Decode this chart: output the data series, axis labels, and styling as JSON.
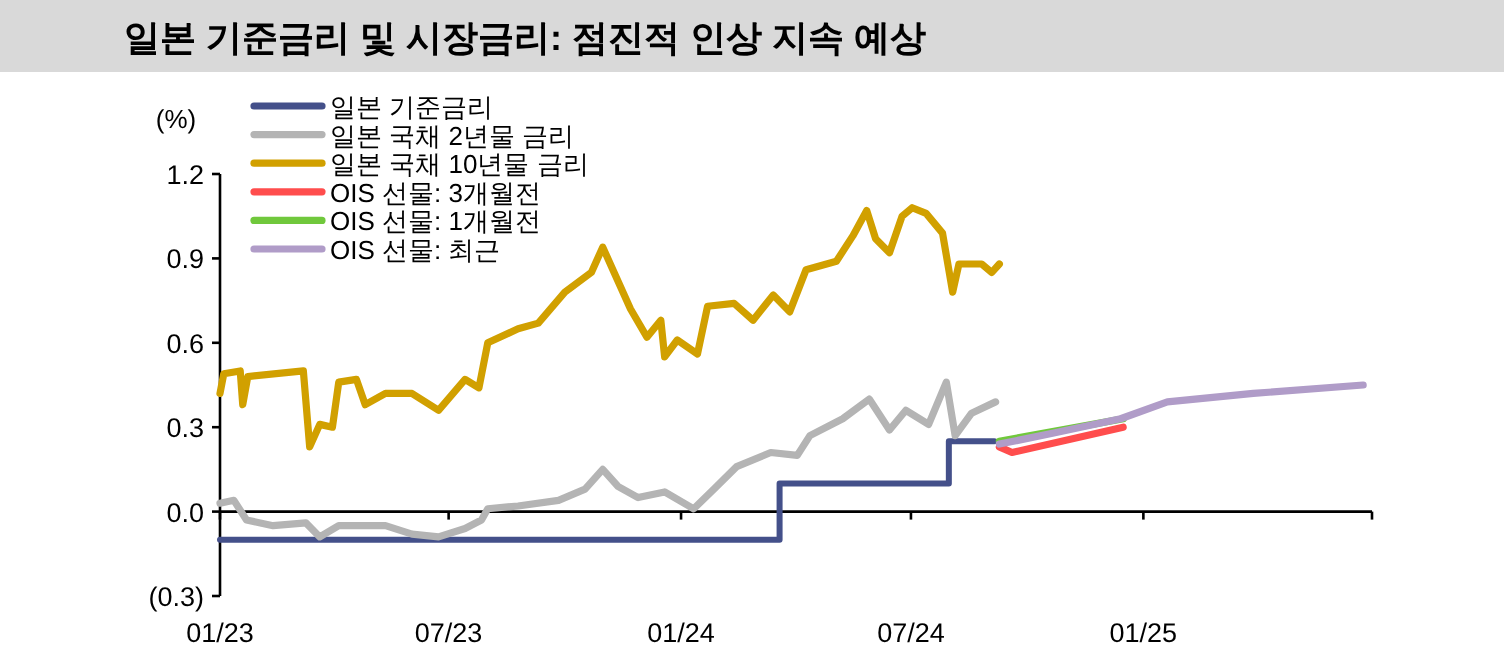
{
  "chart_data": {
    "type": "line",
    "title": "일본 기준금리 및 시장금리: 점진적 인상 지속 예상",
    "ylabel": "(%)",
    "legend": "top left",
    "xlim": [
      "2023-01-01",
      "2025-07-01"
    ],
    "ylim": [
      -0.3,
      1.2
    ],
    "xticks": [
      {
        "value": "2023-01-01",
        "label": "01/23"
      },
      {
        "value": "2023-07-01",
        "label": "07/23"
      },
      {
        "value": "2024-01-01",
        "label": "01/24"
      },
      {
        "value": "2024-07-01",
        "label": "07/24"
      },
      {
        "value": "2025-01-01",
        "label": "01/25"
      },
      {
        "value": "2025-07-01",
        "label": null
      }
    ],
    "yticks": [
      {
        "value": 1.2,
        "label": "1.2"
      },
      {
        "value": 0.9,
        "label": "0.9"
      },
      {
        "value": 0.6,
        "label": "0.6"
      },
      {
        "value": 0.3,
        "label": "0.3"
      },
      {
        "value": 0,
        "label": "0.0"
      },
      {
        "value": -0.3,
        "label": "(0.3)"
      }
    ],
    "series": [
      {
        "name": "일본 기준금리",
        "type": "step",
        "color": "#44508a",
        "x": [
          "2023-01-01",
          "2024-03-19",
          "2024-07-31",
          "2024-09-05"
        ],
        "values": [
          -0.1,
          0.1,
          0.25,
          0.25
        ]
      },
      {
        "name": "일본 국채 2년물 금리",
        "color": "#b4b4b4",
        "x": [
          "2023-01-01",
          "2023-01-12",
          "2023-01-22",
          "2023-02-12",
          "2023-03-10",
          "2023-03-21",
          "2023-04-05",
          "2023-05-12",
          "2023-06-02",
          "2023-06-23",
          "2023-07-14",
          "2023-07-27",
          "2023-08-01",
          "2023-08-25",
          "2023-09-26",
          "2023-10-17",
          "2023-10-31",
          "2023-11-12",
          "2023-11-28",
          "2023-12-19",
          "2024-01-11",
          "2024-01-27",
          "2024-02-14",
          "2024-03-12",
          "2024-04-02",
          "2024-04-12",
          "2024-05-08",
          "2024-05-29",
          "2024-06-14",
          "2024-06-27",
          "2024-07-15",
          "2024-07-29",
          "2024-08-05",
          "2024-08-18",
          "2024-09-06"
        ],
        "values": [
          0.03,
          0.04,
          -0.03,
          -0.05,
          -0.04,
          -0.09,
          -0.05,
          -0.05,
          -0.08,
          -0.09,
          -0.06,
          -0.03,
          0.01,
          0.02,
          0.04,
          0.08,
          0.15,
          0.09,
          0.05,
          0.07,
          0.01,
          0.08,
          0.16,
          0.21,
          0.2,
          0.27,
          0.33,
          0.4,
          0.29,
          0.36,
          0.31,
          0.46,
          0.27,
          0.35,
          0.39
        ]
      },
      {
        "name": "일본 국채 10년물 금리",
        "color": "#d1a000",
        "x": [
          "2023-01-01",
          "2023-01-04",
          "2023-01-17",
          "2023-01-19",
          "2023-01-23",
          "2023-03-08",
          "2023-03-13",
          "2023-03-21",
          "2023-03-31",
          "2023-04-05",
          "2023-04-19",
          "2023-04-26",
          "2023-05-12",
          "2023-06-02",
          "2023-06-23",
          "2023-07-14",
          "2023-07-25",
          "2023-08-01",
          "2023-08-25",
          "2023-09-10",
          "2023-10-01",
          "2023-10-22",
          "2023-10-31",
          "2023-11-09",
          "2023-11-22",
          "2023-12-05",
          "2023-12-16",
          "2023-12-19",
          "2023-12-29",
          "2024-01-14",
          "2024-01-22",
          "2024-02-12",
          "2024-02-27",
          "2024-03-14",
          "2024-03-27",
          "2024-04-09",
          "2024-05-03",
          "2024-05-16",
          "2024-05-27",
          "2024-06-03",
          "2024-06-14",
          "2024-06-24",
          "2024-07-02",
          "2024-07-13",
          "2024-07-26",
          "2024-08-03",
          "2024-08-08",
          "2024-08-26",
          "2024-09-03",
          "2024-09-09"
        ],
        "values": [
          0.42,
          0.49,
          0.5,
          0.38,
          0.48,
          0.5,
          0.23,
          0.31,
          0.3,
          0.46,
          0.47,
          0.38,
          0.42,
          0.42,
          0.36,
          0.47,
          0.44,
          0.6,
          0.65,
          0.67,
          0.78,
          0.85,
          0.94,
          0.85,
          0.72,
          0.62,
          0.68,
          0.55,
          0.61,
          0.56,
          0.73,
          0.74,
          0.68,
          0.77,
          0.71,
          0.86,
          0.89,
          0.98,
          1.07,
          0.97,
          0.92,
          1.05,
          1.08,
          1.06,
          0.99,
          0.78,
          0.88,
          0.88,
          0.85,
          0.88
        ]
      },
      {
        "name": "OIS 선물: 3개월전",
        "color": "#ff4d4d",
        "x": [
          "2024-09-09",
          "2024-09-19",
          "2024-12-16"
        ],
        "values": [
          0.23,
          0.21,
          0.3
        ]
      },
      {
        "name": "OIS 선물: 1개월전",
        "color": "#70c83c",
        "x": [
          "2024-09-09",
          "2024-12-16"
        ],
        "values": [
          0.25,
          0.33
        ]
      },
      {
        "name": "OIS 선물: 최근",
        "color": "#b09cc8",
        "x": [
          "2024-09-09",
          "2024-10-23",
          "2024-12-14",
          "2025-01-20",
          "2025-03-29",
          "2025-06-24"
        ],
        "values": [
          0.24,
          0.28,
          0.33,
          0.39,
          0.42,
          0.45
        ]
      }
    ]
  }
}
